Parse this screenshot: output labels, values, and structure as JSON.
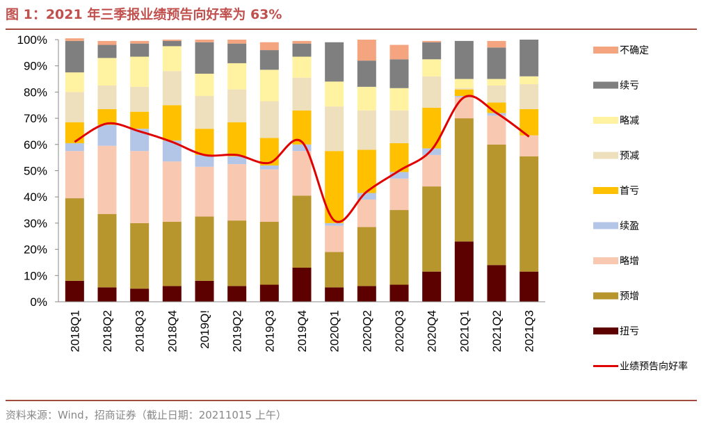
{
  "header": {
    "title": "图 1：2021 年三季报业绩预告向好率为 63%"
  },
  "footer": {
    "source": "资料来源：Wind，招商证券（截止日期：20211015 上午）"
  },
  "chart_data": {
    "type": "bar",
    "stacked": true,
    "categories": [
      "2018Q1",
      "2018Q2",
      "2018Q3",
      "2018Q4",
      "2019Q!",
      "2019Q2",
      "2019Q3",
      "2019Q4",
      "2020Q1",
      "2020Q2",
      "2020Q3",
      "2020Q4",
      "2021Q1",
      "2021Q2",
      "2021Q3"
    ],
    "ylim": [
      0,
      100
    ],
    "yticks": [
      "0%",
      "10%",
      "20%",
      "30%",
      "40%",
      "50%",
      "60%",
      "70%",
      "80%",
      "90%",
      "100%"
    ],
    "grid": false,
    "legend_position": "right",
    "series": [
      {
        "name": "扭亏",
        "color": "#5c0000",
        "values": [
          8,
          5.5,
          5,
          6,
          8,
          6,
          6.5,
          13,
          5.5,
          6,
          6.5,
          11.5,
          23,
          14,
          11.5
        ]
      },
      {
        "name": "预增",
        "color": "#b8962e",
        "values": [
          31.5,
          28,
          25,
          24.5,
          24.5,
          25,
          24,
          27.5,
          13.5,
          22.5,
          28.5,
          32.5,
          47,
          46,
          44
        ]
      },
      {
        "name": "略增",
        "color": "#f8c8b0",
        "values": [
          18,
          26,
          27.5,
          23,
          19,
          21.5,
          20,
          17,
          10,
          10.5,
          12,
          12,
          8,
          11,
          8
        ]
      },
      {
        "name": "续盈",
        "color": "#b4c6e7",
        "values": [
          3,
          8,
          8.5,
          8,
          4.5,
          3,
          1.5,
          2.5,
          1,
          2.5,
          2.5,
          2.5,
          0.5,
          1,
          0
        ]
      },
      {
        "name": "首亏",
        "color": "#ffc000",
        "values": [
          8,
          6,
          6.5,
          13.5,
          10,
          13,
          10.5,
          13,
          27.5,
          16.5,
          11,
          15.5,
          2.5,
          4,
          10
        ]
      },
      {
        "name": "预减",
        "color": "#eedfbd",
        "values": [
          11.5,
          9,
          9.5,
          13,
          12.5,
          12.5,
          14,
          12.5,
          17,
          15,
          12.5,
          12,
          0.5,
          6.5,
          9.5
        ]
      },
      {
        "name": "略减",
        "color": "#fff2a0",
        "values": [
          7.5,
          10.5,
          11.5,
          9.5,
          8.5,
          10,
          12,
          8,
          9.5,
          9,
          8.5,
          6.5,
          3.5,
          2.5,
          3
        ]
      },
      {
        "name": "续亏",
        "color": "#7f7f7f",
        "values": [
          12,
          5,
          5,
          2,
          12,
          7.5,
          7.5,
          5,
          15,
          10,
          11,
          6.5,
          14.5,
          12,
          14
        ]
      },
      {
        "name": "不确定",
        "color": "#f4a57f",
        "values": [
          1,
          1.5,
          1,
          0.5,
          1,
          1.5,
          3,
          1,
          0,
          8,
          5.5,
          0.5,
          0,
          2.5,
          0
        ]
      }
    ],
    "line": {
      "name": "业绩预告向好率",
      "color": "#e00000",
      "values": [
        61,
        68,
        65,
        61,
        56,
        56,
        53,
        61,
        31,
        42,
        50,
        58,
        78,
        72,
        63
      ]
    }
  }
}
